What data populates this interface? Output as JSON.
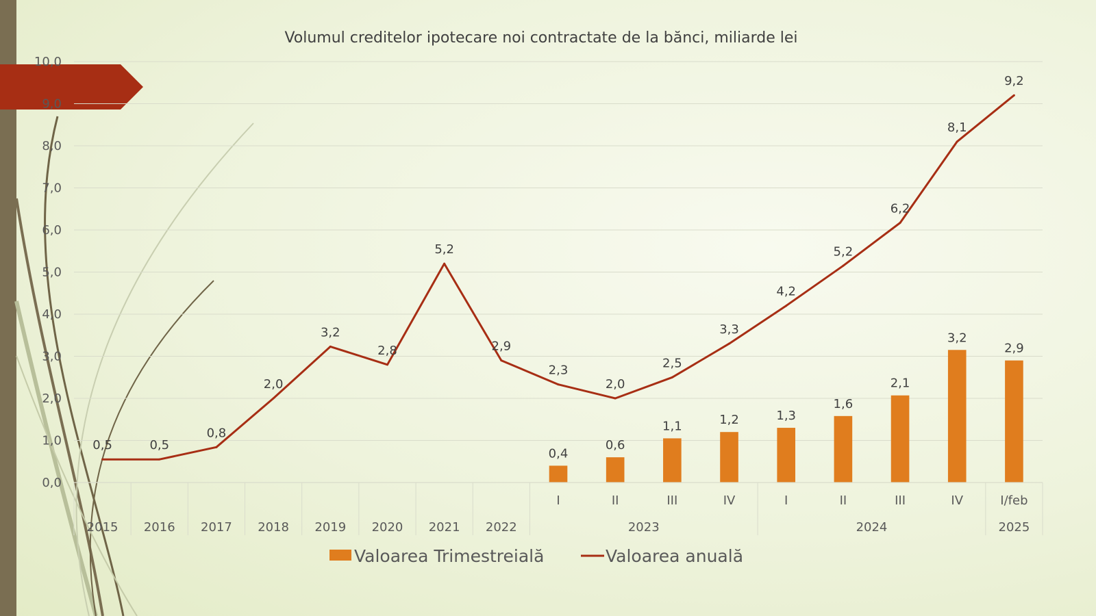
{
  "colors": {
    "bar": "#e07d1e",
    "line": "#a72e14",
    "arrow": "#a72e14",
    "left_bar": "#7a6e52",
    "grid": "#d9dccb",
    "axis_text": "#595959"
  },
  "chart_data": {
    "type": "bar+line",
    "title": "Volumul creditelor ipotecare noi contractate de la bănci, miliarde lei",
    "ylim": [
      0,
      10
    ],
    "y_ticks": [
      "0,0",
      "1,0",
      "2,0",
      "3,0",
      "4,0",
      "5,0",
      "6,0",
      "7,0",
      "8,0",
      "9,0",
      "10,0"
    ],
    "grid": true,
    "legend_position": "bottom",
    "categories": [
      {
        "sub": "",
        "value_line": 0.55,
        "line_label": "0,5"
      },
      {
        "sub": "",
        "value_line": 0.55,
        "line_label": "0,5"
      },
      {
        "sub": "",
        "value_line": 0.84,
        "line_label": "0,8"
      },
      {
        "sub": "",
        "value_line": 2.0,
        "line_label": "2,0"
      },
      {
        "sub": "",
        "value_line": 3.23,
        "line_label": "3,2"
      },
      {
        "sub": "",
        "value_line": 2.8,
        "line_label": "2,8"
      },
      {
        "sub": "",
        "value_line": 5.2,
        "line_label": "5,2"
      },
      {
        "sub": "",
        "value_line": 2.9,
        "line_label": "2,9"
      },
      {
        "sub": "I",
        "value_line": 2.33,
        "line_label": "2,3",
        "value_bar": 0.4,
        "bar_label": "0,4"
      },
      {
        "sub": "II",
        "value_line": 2.0,
        "line_label": "2,0",
        "value_bar": 0.6,
        "bar_label": "0,6"
      },
      {
        "sub": "III",
        "value_line": 2.5,
        "line_label": "2,5",
        "value_bar": 1.05,
        "bar_label": "1,1"
      },
      {
        "sub": "IV",
        "value_line": 3.3,
        "line_label": "3,3",
        "value_bar": 1.2,
        "bar_label": "1,2"
      },
      {
        "sub": "I",
        "value_line": 4.2,
        "line_label": "4,2",
        "value_bar": 1.3,
        "bar_label": "1,3"
      },
      {
        "sub": "II",
        "value_line": 5.15,
        "line_label": "5,2",
        "value_bar": 1.58,
        "bar_label": "1,6"
      },
      {
        "sub": "III",
        "value_line": 6.17,
        "line_label": "6,2",
        "value_bar": 2.07,
        "bar_label": "2,1"
      },
      {
        "sub": "IV",
        "value_line": 8.1,
        "line_label": "8,1",
        "value_bar": 3.15,
        "bar_label": "3,2"
      },
      {
        "sub": "I/feb",
        "value_line": 9.2,
        "line_label": "9,2",
        "value_bar": 2.9,
        "bar_label": "2,9"
      }
    ],
    "year_groups": [
      {
        "label": "2015",
        "start": 0,
        "end": 0
      },
      {
        "label": "2016",
        "start": 1,
        "end": 1
      },
      {
        "label": "2017",
        "start": 2,
        "end": 2
      },
      {
        "label": "2018",
        "start": 3,
        "end": 3
      },
      {
        "label": "2019",
        "start": 4,
        "end": 4
      },
      {
        "label": "2020",
        "start": 5,
        "end": 5
      },
      {
        "label": "2021",
        "start": 6,
        "end": 6
      },
      {
        "label": "2022",
        "start": 7,
        "end": 7
      },
      {
        "label": "2023",
        "start": 8,
        "end": 11
      },
      {
        "label": "2024",
        "start": 12,
        "end": 15
      },
      {
        "label": "2025",
        "start": 16,
        "end": 16
      }
    ],
    "series": [
      {
        "name": "Valoarea Trimestreială",
        "kind": "bar"
      },
      {
        "name": "Valoarea anuală",
        "kind": "line"
      }
    ]
  }
}
